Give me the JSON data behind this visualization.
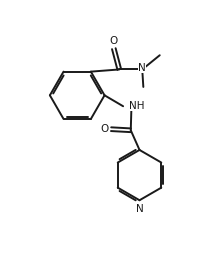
{
  "bg_color": "#ffffff",
  "line_color": "#1a1a1a",
  "text_color": "#1a1a1a",
  "line_width": 1.4,
  "font_size": 7.5,
  "figsize": [
    2.2,
    2.54
  ],
  "dpi": 100,
  "xlim": [
    0,
    10
  ],
  "ylim": [
    0,
    11.5
  ]
}
